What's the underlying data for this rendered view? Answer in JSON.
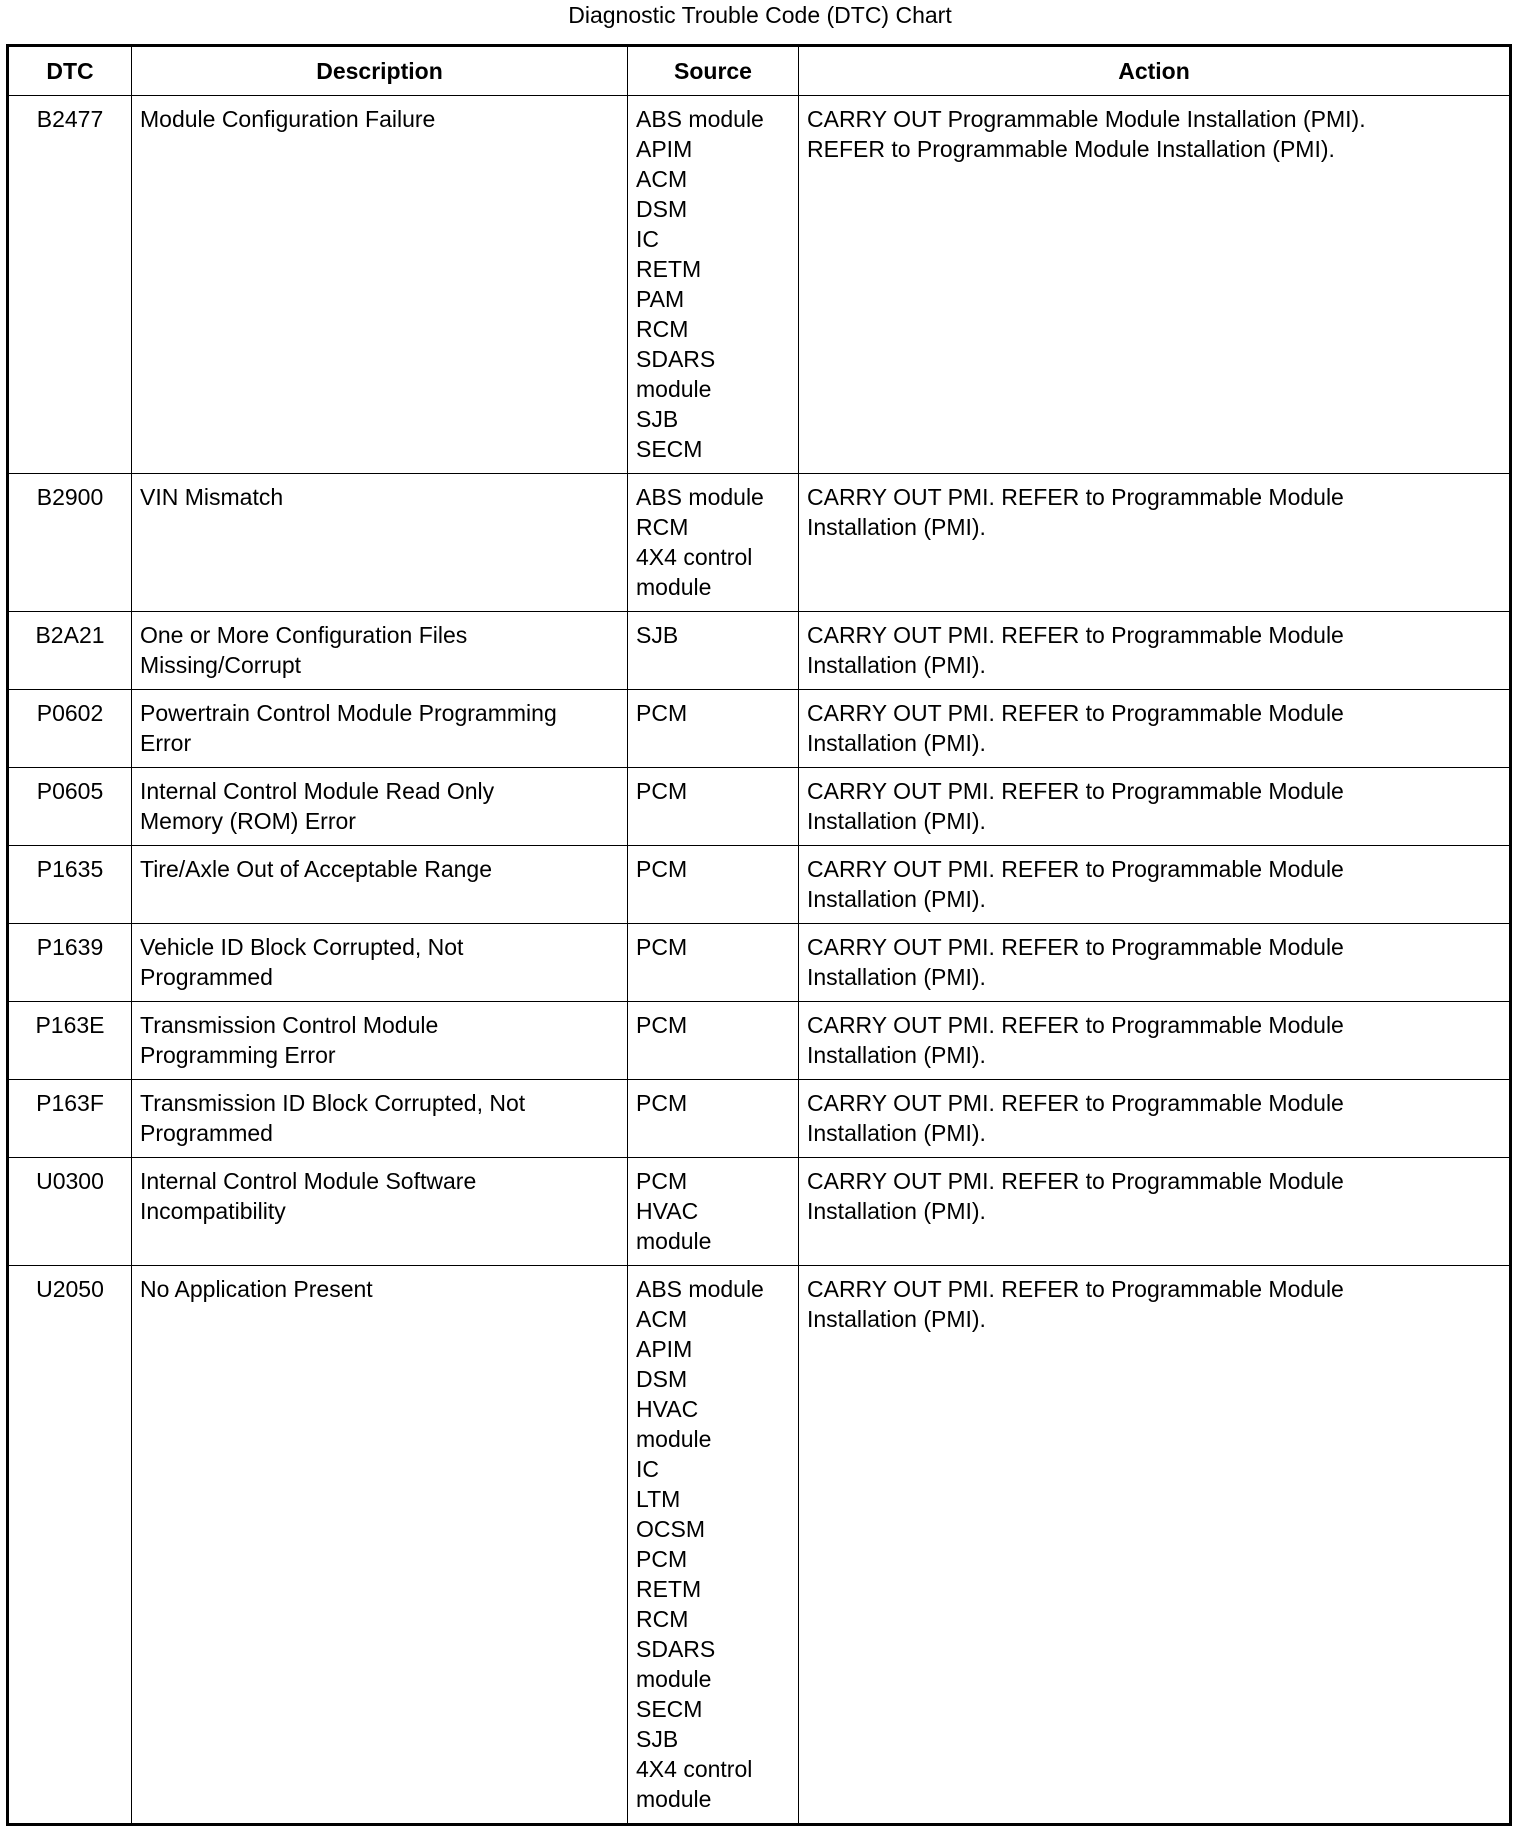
{
  "title": "Diagnostic Trouble Code (DTC) Chart",
  "headers": [
    "DTC",
    "Description",
    "Source",
    "Action"
  ],
  "rows": [
    {
      "dtc": "B2477",
      "description": [
        "Module Configuration Failure"
      ],
      "source": [
        "ABS module",
        "APIM",
        "ACM",
        "DSM",
        "IC",
        "RETM",
        "PAM",
        "RCM",
        "SDARS",
        "module",
        "SJB",
        "SECM"
      ],
      "action": [
        "CARRY OUT Programmable Module Installation (PMI).",
        "REFER to Programmable Module Installation (PMI)."
      ]
    },
    {
      "dtc": "B2900",
      "description": [
        "VIN Mismatch"
      ],
      "source": [
        "ABS module",
        "RCM",
        "4X4 control",
        "module"
      ],
      "action": [
        "CARRY OUT PMI. REFER to Programmable Module",
        "Installation (PMI)."
      ]
    },
    {
      "dtc": "B2A21",
      "description": [
        "One or More Configuration Files",
        "Missing/Corrupt"
      ],
      "source": [
        "SJB"
      ],
      "action": [
        "CARRY OUT PMI. REFER to Programmable Module",
        "Installation (PMI)."
      ]
    },
    {
      "dtc": "P0602",
      "description": [
        "Powertrain Control Module Programming",
        "Error"
      ],
      "source": [
        "PCM"
      ],
      "action": [
        "CARRY OUT PMI. REFER to Programmable Module",
        "Installation (PMI)."
      ]
    },
    {
      "dtc": "P0605",
      "description": [
        "Internal Control Module Read Only",
        "Memory (ROM) Error"
      ],
      "source": [
        "PCM"
      ],
      "action": [
        "CARRY OUT PMI. REFER to Programmable Module",
        "Installation (PMI)."
      ]
    },
    {
      "dtc": "P1635",
      "description": [
        "Tire/Axle Out of Acceptable Range"
      ],
      "source": [
        "PCM"
      ],
      "action": [
        "CARRY OUT PMI. REFER to Programmable Module",
        "Installation (PMI)."
      ]
    },
    {
      "dtc": "P1639",
      "description": [
        "Vehicle ID Block Corrupted, Not",
        "Programmed"
      ],
      "source": [
        "PCM"
      ],
      "action": [
        "CARRY OUT PMI. REFER to Programmable Module",
        "Installation (PMI)."
      ]
    },
    {
      "dtc": "P163E",
      "description": [
        "Transmission Control Module",
        "Programming Error"
      ],
      "source": [
        "PCM"
      ],
      "action": [
        "CARRY OUT PMI. REFER to Programmable Module",
        "Installation (PMI)."
      ]
    },
    {
      "dtc": "P163F",
      "description": [
        "Transmission ID Block Corrupted, Not",
        "Programmed"
      ],
      "source": [
        "PCM"
      ],
      "action": [
        "CARRY OUT PMI. REFER to Programmable Module",
        "Installation (PMI)."
      ]
    },
    {
      "dtc": "U0300",
      "description": [
        "Internal Control Module Software",
        "Incompatibility"
      ],
      "source": [
        "PCM",
        "HVAC",
        "module"
      ],
      "action": [
        "CARRY OUT PMI. REFER to Programmable Module",
        "Installation (PMI)."
      ]
    },
    {
      "dtc": "U2050",
      "description": [
        "No Application Present"
      ],
      "source": [
        "ABS module",
        "ACM",
        "APIM",
        "DSM",
        "HVAC",
        "module",
        "IC",
        "LTM",
        "OCSM",
        "PCM",
        "RETM",
        "RCM",
        "SDARS",
        "module",
        "SECM",
        "SJB",
        "4X4 control",
        "module"
      ],
      "action": [
        "CARRY OUT PMI. REFER to Programmable Module",
        "Installation (PMI)."
      ]
    }
  ]
}
